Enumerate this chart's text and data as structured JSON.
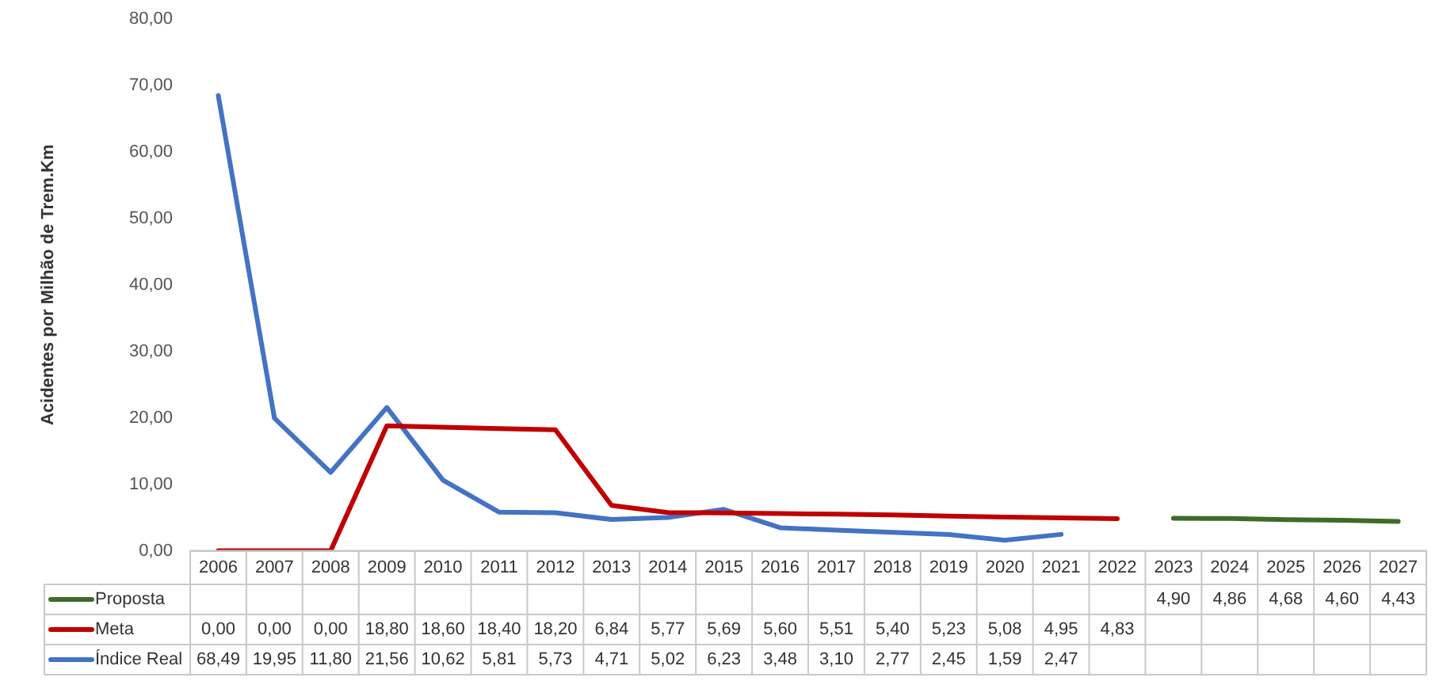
{
  "chart_data": {
    "type": "line",
    "ylabel": "Acidentes por Milhão de Trem.Km",
    "categories": [
      "2006",
      "2007",
      "2008",
      "2009",
      "2010",
      "2011",
      "2012",
      "2013",
      "2014",
      "2015",
      "2016",
      "2017",
      "2018",
      "2019",
      "2020",
      "2021",
      "2022",
      "2023",
      "2024",
      "2025",
      "2026",
      "2027"
    ],
    "series": [
      {
        "name": "Proposta",
        "color": "#3f6b2a",
        "values": [
          null,
          null,
          null,
          null,
          null,
          null,
          null,
          null,
          null,
          null,
          null,
          null,
          null,
          null,
          null,
          null,
          null,
          4.9,
          4.86,
          4.68,
          4.6,
          4.43
        ],
        "value_labels": [
          null,
          null,
          null,
          null,
          null,
          null,
          null,
          null,
          null,
          null,
          null,
          null,
          null,
          null,
          null,
          null,
          null,
          "4,90",
          "4,86",
          "4,68",
          "4,60",
          "4,43"
        ]
      },
      {
        "name": "Meta",
        "color": "#c00000",
        "values": [
          0.0,
          0.0,
          0.0,
          18.8,
          18.6,
          18.4,
          18.2,
          6.84,
          5.77,
          5.69,
          5.6,
          5.51,
          5.4,
          5.23,
          5.08,
          4.95,
          4.83,
          null,
          null,
          null,
          null,
          null
        ],
        "value_labels": [
          "0,00",
          "0,00",
          "0,00",
          "18,80",
          "18,60",
          "18,40",
          "18,20",
          "6,84",
          "5,77",
          "5,69",
          "5,60",
          "5,51",
          "5,40",
          "5,23",
          "5,08",
          "4,95",
          "4,83",
          null,
          null,
          null,
          null,
          null
        ]
      },
      {
        "name": "Índice Real",
        "color": "#4472c4",
        "values": [
          68.49,
          19.95,
          11.8,
          21.56,
          10.62,
          5.81,
          5.73,
          4.71,
          5.02,
          6.23,
          3.48,
          3.1,
          2.77,
          2.45,
          1.59,
          2.47,
          null,
          null,
          null,
          null,
          null,
          null
        ],
        "value_labels": [
          "68,49",
          "19,95",
          "11,80",
          "21,56",
          "10,62",
          "5,81",
          "5,73",
          "4,71",
          "5,02",
          "6,23",
          "3,48",
          "3,10",
          "2,77",
          "2,45",
          "1,59",
          "2,47",
          null,
          null,
          null,
          null,
          null,
          null
        ]
      }
    ],
    "ylim": [
      0,
      80
    ],
    "yticks": [
      {
        "value": 0,
        "label": "0,00"
      },
      {
        "value": 10,
        "label": "10,00"
      },
      {
        "value": 20,
        "label": "20,00"
      },
      {
        "value": 30,
        "label": "30,00"
      },
      {
        "value": 40,
        "label": "40,00"
      },
      {
        "value": 50,
        "label": "50,00"
      },
      {
        "value": 60,
        "label": "60,00"
      },
      {
        "value": 70,
        "label": "70,00"
      },
      {
        "value": 80,
        "label": "80,00"
      }
    ],
    "grid": false,
    "legend": "bottom",
    "marker": "none",
    "line_style": "solid"
  }
}
